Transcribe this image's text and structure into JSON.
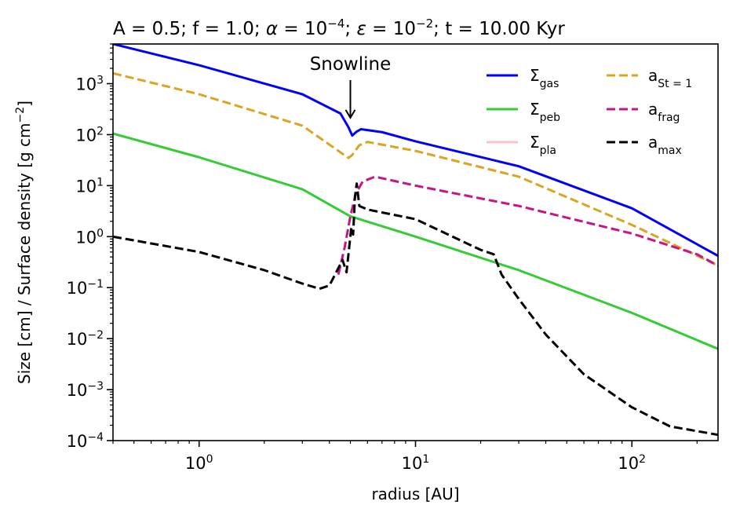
{
  "chart_data": {
    "type": "line",
    "title": {
      "parts": [
        {
          "text": "A = 0.5; f = 1.0; "
        },
        {
          "text": "α",
          "italic": true
        },
        {
          "text": " = 10"
        },
        {
          "text": "−4",
          "sup": true
        },
        {
          "text": "; "
        },
        {
          "text": "ε",
          "italic": true
        },
        {
          "text": " = 10"
        },
        {
          "text": "−2",
          "sup": true
        },
        {
          "text": "; t = 10.00 Kyr"
        }
      ]
    },
    "xlabel": "radius [AU]",
    "ylabel": {
      "parts": [
        {
          "text": "Size [cm] / Surface density [g cm"
        },
        {
          "text": "−2",
          "sup": true
        },
        {
          "text": "]"
        }
      ]
    },
    "xscale": "log",
    "yscale": "log",
    "xlim": [
      0.4,
      250
    ],
    "ylim": [
      0.0001,
      6000
    ],
    "x_ticks": [
      {
        "value": 1,
        "base": "10",
        "exp": "0"
      },
      {
        "value": 10,
        "base": "10",
        "exp": "1"
      },
      {
        "value": 100,
        "base": "10",
        "exp": "2"
      }
    ],
    "y_ticks": [
      {
        "value": 0.0001,
        "base": "10",
        "exp": "−4"
      },
      {
        "value": 0.001,
        "base": "10",
        "exp": "−3"
      },
      {
        "value": 0.01,
        "base": "10",
        "exp": "−2"
      },
      {
        "value": 0.1,
        "base": "10",
        "exp": "−1"
      },
      {
        "value": 1,
        "base": "10",
        "exp": "0"
      },
      {
        "value": 10,
        "base": "10",
        "exp": "1"
      },
      {
        "value": 100,
        "base": "10",
        "exp": "2"
      },
      {
        "value": 1000,
        "base": "10",
        "exp": "3"
      }
    ],
    "series": [
      {
        "name": "Σgas",
        "label_main": "Σ",
        "label_sub": "gas",
        "color": "#0000ff",
        "style": "solid",
        "points": [
          [
            0.4,
            6000
          ],
          [
            1,
            2300
          ],
          [
            3,
            620
          ],
          [
            4.5,
            260
          ],
          [
            4.9,
            140
          ],
          [
            5.1,
            96
          ],
          [
            5.35,
            115
          ],
          [
            5.6,
            128
          ],
          [
            7,
            112
          ],
          [
            10,
            74
          ],
          [
            30,
            24
          ],
          [
            100,
            3.6
          ],
          [
            250,
            0.42
          ]
        ]
      },
      {
        "name": "Σpeb",
        "label_main": "Σ",
        "label_sub": "peb",
        "color": "#32cd32",
        "style": "solid",
        "points": [
          [
            0.4,
            105
          ],
          [
            1,
            36
          ],
          [
            3,
            8.5
          ],
          [
            5,
            2.5
          ],
          [
            10,
            1.0
          ],
          [
            30,
            0.22
          ],
          [
            100,
            0.032
          ],
          [
            250,
            0.0063
          ]
        ]
      },
      {
        "name": "Σpla",
        "label_main": "Σ",
        "label_sub": "pla",
        "color": "#ffc0cb",
        "style": "solid",
        "points": []
      },
      {
        "name": "aSt=1",
        "label_main": "a",
        "label_sub": "St = 1",
        "color": "#daa520",
        "style": "dashed",
        "points": [
          [
            0.4,
            1600
          ],
          [
            1,
            620
          ],
          [
            3,
            150
          ],
          [
            4.5,
            45
          ],
          [
            4.9,
            35
          ],
          [
            5.1,
            40
          ],
          [
            5.5,
            62
          ],
          [
            6,
            72
          ],
          [
            10,
            48
          ],
          [
            30,
            15
          ],
          [
            100,
            1.7
          ],
          [
            250,
            0.27
          ]
        ]
      },
      {
        "name": "afrag",
        "label_main": "a",
        "label_sub": "frag",
        "color": "#c71585",
        "style": "dashed",
        "points": [
          [
            4.4,
            0.18
          ],
          [
            4.7,
            0.6
          ],
          [
            5.0,
            2.5
          ],
          [
            5.3,
            7
          ],
          [
            5.7,
            12
          ],
          [
            6.5,
            15
          ],
          [
            10,
            10
          ],
          [
            30,
            4
          ],
          [
            100,
            1.15
          ],
          [
            200,
            0.45
          ],
          [
            250,
            0.27
          ]
        ]
      },
      {
        "name": "amax",
        "label_main": "a",
        "label_sub": "max",
        "color": "#000000",
        "style": "dashed",
        "points": [
          [
            0.4,
            1.0
          ],
          [
            1,
            0.5
          ],
          [
            2,
            0.22
          ],
          [
            3,
            0.12
          ],
          [
            3.6,
            0.095
          ],
          [
            4.0,
            0.11
          ],
          [
            4.3,
            0.2
          ],
          [
            4.6,
            0.35
          ],
          [
            4.8,
            0.2
          ],
          [
            5.05,
            1.5
          ],
          [
            5.15,
            1.1
          ],
          [
            5.25,
            6
          ],
          [
            5.35,
            11
          ],
          [
            5.5,
            4
          ],
          [
            6,
            3.4
          ],
          [
            10,
            2.2
          ],
          [
            20,
            0.55
          ],
          [
            23,
            0.45
          ],
          [
            25,
            0.18
          ],
          [
            30,
            0.06
          ],
          [
            40,
            0.012
          ],
          [
            60,
            0.002
          ],
          [
            100,
            0.00045
          ],
          [
            150,
            0.00019
          ],
          [
            250,
            0.00013
          ]
        ]
      }
    ],
    "legend": {
      "location": "top-right",
      "columns": 2,
      "frame": false
    },
    "annotations": [
      {
        "text": "Snowline",
        "arrow_to": [
          5.0,
          200
        ]
      }
    ]
  }
}
